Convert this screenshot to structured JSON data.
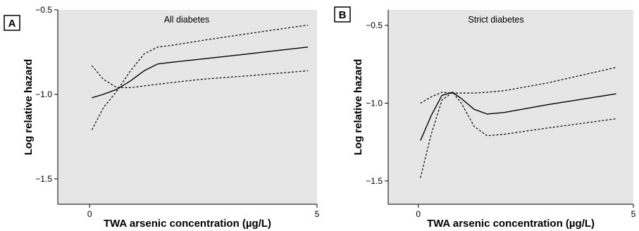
{
  "chart_data": [
    {
      "type": "line",
      "panel_label": "A",
      "title": "All diabetes",
      "xlabel": "TWA arsenic concentration (µg/L)",
      "ylabel": "Log relative hazard",
      "xlim": [
        -0.7,
        5
      ],
      "ylim": [
        -1.65,
        -0.5
      ],
      "xticks": [
        0,
        5
      ],
      "xtick_labels": [
        "0",
        "5"
      ],
      "yticks": [
        -0.5,
        -1.0,
        -1.5
      ],
      "ytick_labels": [
        "−0.5",
        "−1.0",
        "−1.5"
      ],
      "grid": false,
      "series": [
        {
          "style": "solid",
          "x": [
            0.05,
            0.3,
            0.6,
            0.9,
            1.2,
            1.5,
            1.8,
            2.5,
            3.5,
            4.8
          ],
          "y": [
            -1.02,
            -1.0,
            -0.97,
            -0.92,
            -0.86,
            -0.82,
            -0.81,
            -0.79,
            -0.76,
            -0.72
          ]
        },
        {
          "style": "dashed",
          "x": [
            0.05,
            0.3,
            0.6,
            0.9,
            1.2,
            1.5,
            1.8,
            2.5,
            3.5,
            4.8
          ],
          "y": [
            -1.21,
            -1.08,
            -0.98,
            -0.86,
            -0.76,
            -0.72,
            -0.71,
            -0.68,
            -0.64,
            -0.59
          ]
        },
        {
          "style": "dashed",
          "x": [
            0.05,
            0.3,
            0.6,
            0.9,
            1.2,
            1.5,
            1.8,
            2.5,
            3.5,
            4.8
          ],
          "y": [
            -0.83,
            -0.91,
            -0.96,
            -0.96,
            -0.95,
            -0.94,
            -0.93,
            -0.91,
            -0.89,
            -0.86
          ]
        }
      ]
    },
    {
      "type": "line",
      "panel_label": "B",
      "title": "Strict diabetes",
      "xlabel": "TWA arsenic concentration (µg/L)",
      "ylabel": "Log relative hazard",
      "xlim": [
        -0.7,
        5
      ],
      "ylim": [
        -1.65,
        -0.4
      ],
      "xticks": [
        0,
        5
      ],
      "xtick_labels": [
        "0",
        "5"
      ],
      "yticks": [
        -0.5,
        -1.0,
        -1.5
      ],
      "ytick_labels": [
        "−0.5",
        "−1.0",
        "−1.5"
      ],
      "grid": false,
      "series": [
        {
          "style": "solid",
          "x": [
            0.05,
            0.3,
            0.55,
            0.8,
            1.0,
            1.3,
            1.6,
            2.0,
            3.0,
            4.6
          ],
          "y": [
            -1.24,
            -1.08,
            -0.95,
            -0.93,
            -0.97,
            -1.04,
            -1.07,
            -1.06,
            -1.01,
            -0.94
          ]
        },
        {
          "style": "dashed",
          "x": [
            0.05,
            0.3,
            0.55,
            0.8,
            1.0,
            1.3,
            1.6,
            2.0,
            3.0,
            4.6
          ],
          "y": [
            -1.0,
            -0.96,
            -0.93,
            -0.935,
            -0.935,
            -0.935,
            -0.93,
            -0.92,
            -0.87,
            -0.77
          ]
        },
        {
          "style": "dashed",
          "x": [
            0.05,
            0.3,
            0.55,
            0.8,
            1.0,
            1.3,
            1.6,
            2.0,
            3.0,
            4.6
          ],
          "y": [
            -1.48,
            -1.2,
            -0.98,
            -0.93,
            -1.0,
            -1.15,
            -1.21,
            -1.2,
            -1.16,
            -1.1
          ]
        }
      ]
    }
  ]
}
